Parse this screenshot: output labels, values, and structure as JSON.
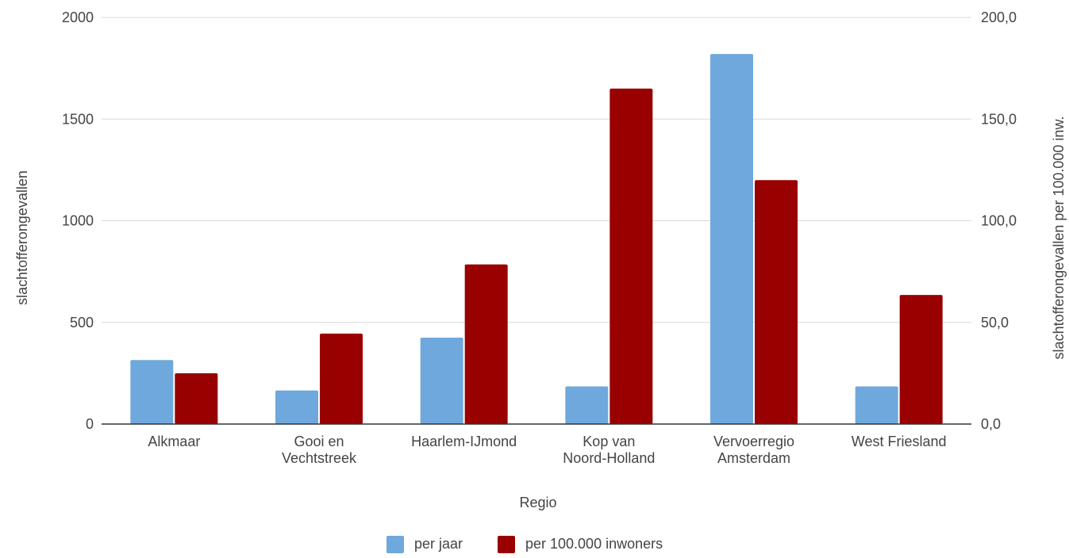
{
  "chart_data": {
    "type": "bar",
    "xlabel": "Regio",
    "ylabel_left": "slachtofferongevallen",
    "ylabel_right": "slachtofferongevallen per 100.000 inw.",
    "categories": [
      [
        "Alkmaar"
      ],
      [
        "Gooi en",
        "Vechtstreek"
      ],
      [
        "Haarlem-IJmond"
      ],
      [
        "Kop van",
        "Noord-Holland"
      ],
      [
        "Vervoerregio",
        "Amsterdam"
      ],
      [
        "West Friesland"
      ]
    ],
    "series": [
      {
        "name": "per jaar",
        "axis": "left",
        "color": "#6fa8dc",
        "values": [
          315,
          165,
          425,
          185,
          1820,
          185
        ]
      },
      {
        "name": "per 100.000 inwoners",
        "axis": "right",
        "color": "#990000",
        "values": [
          25.0,
          44.5,
          78.5,
          165.0,
          120.0,
          63.5
        ]
      }
    ],
    "ylim_left": [
      0,
      2000
    ],
    "ylim_right": [
      0,
      200
    ],
    "yticks_left": [
      "0",
      "500",
      "1000",
      "1500",
      "2000"
    ],
    "yticks_right": [
      "0,0",
      "50,0",
      "100,0",
      "150,0",
      "200,0"
    ],
    "grid": true,
    "legend_position": "bottom"
  }
}
